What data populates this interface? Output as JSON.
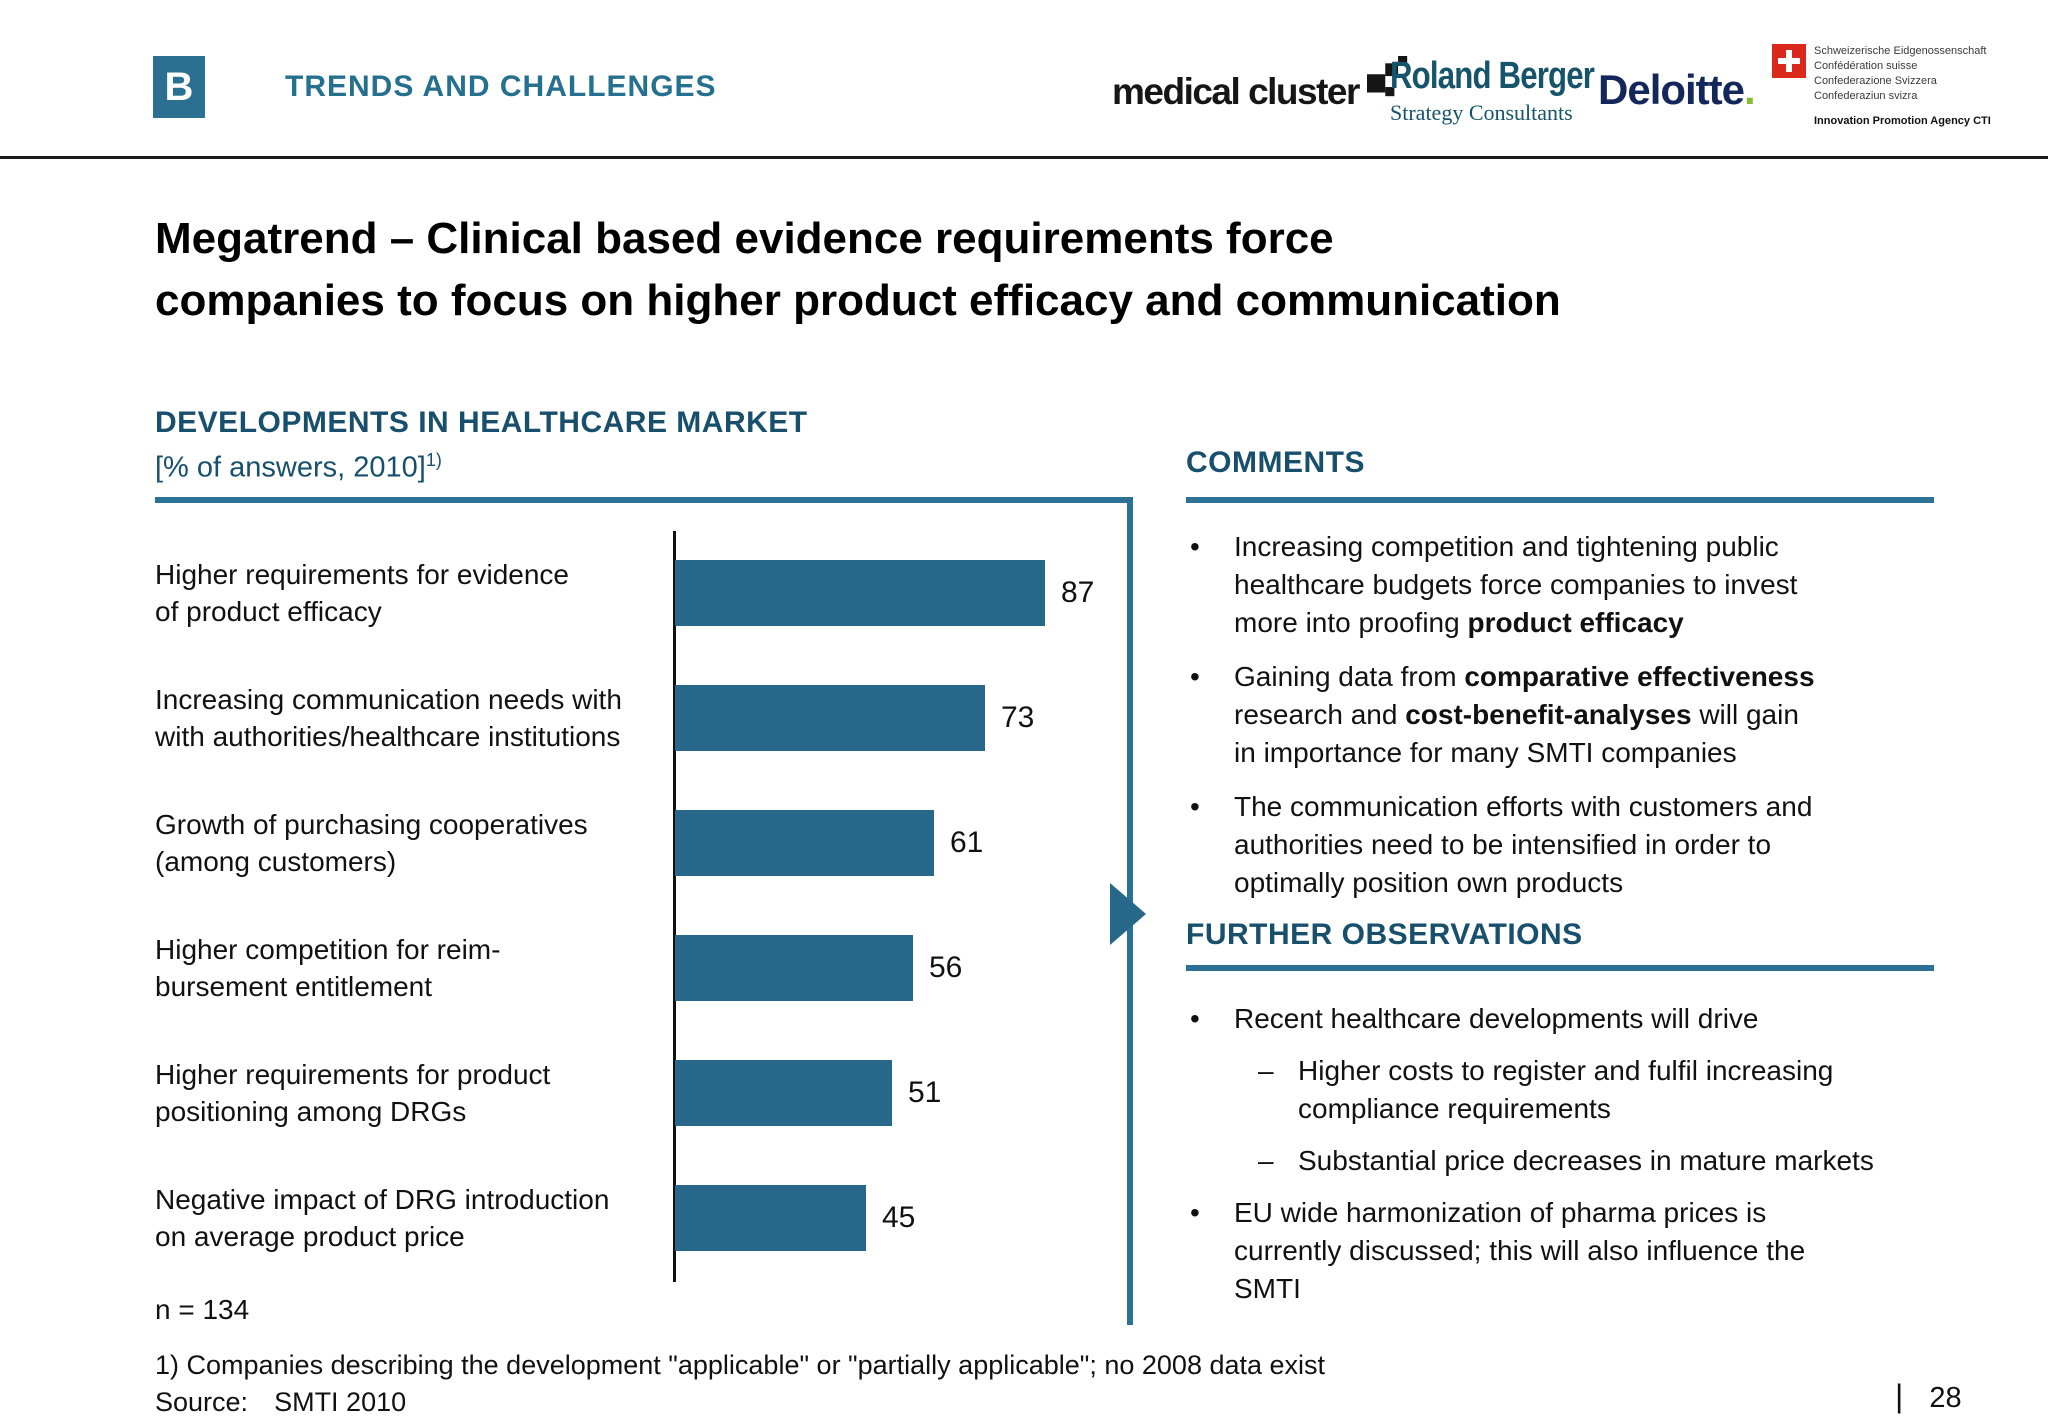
{
  "header": {
    "badge": "B",
    "section_title": "TRENDS AND CHALLENGES",
    "logos": {
      "medical_cluster": "medical cluster",
      "roland_berger": {
        "name": "Roland Berger",
        "subtitle": "Strategy Consultants"
      },
      "deloitte": {
        "name": "Deloitte",
        "dot": "."
      },
      "swiss": {
        "lines": [
          "Schweizerische Eidgenossenschaft",
          "Confédération suisse",
          "Confederazione Svizzera",
          "Confederaziun svizra"
        ],
        "agency": "Innovation Promotion Agency CTI"
      }
    }
  },
  "title": "Megatrend – Clinical based evidence requirements force\ncompanies to focus on higher product efficacy and communication",
  "chart": {
    "heading": "DEVELOPMENTS IN HEALTHCARE MARKET",
    "subheading": "[% of answers, 2010]",
    "footnote_marker": "1)",
    "n_label": "n = 134"
  },
  "chart_data": {
    "type": "bar",
    "orientation": "horizontal",
    "title": "DEVELOPMENTS IN HEALTHCARE MARKET",
    "subtitle": "[% of answers, 2010]",
    "unit": "% of answers",
    "categories": [
      "Higher requirements for evidence\nof product efficacy",
      "Increasing communication needs with\nwith authorities/healthcare institutions",
      "Growth of purchasing cooperatives\n(among customers)",
      "Higher competition for reim-\nbursement entitlement",
      "Higher requirements for product\npositioning among DRGs",
      "Negative impact of DRG introduction\non average product price"
    ],
    "values": [
      87,
      73,
      61,
      56,
      51,
      45
    ],
    "n": 134,
    "xlim": [
      0,
      100
    ],
    "grid": false,
    "bar_color": "#26678a",
    "value_label_position": "right-of-bar"
  },
  "comments": {
    "heading": "COMMENTS",
    "bullets": [
      {
        "segments": [
          {
            "t": "Increasing competition and tightening public\nhealthcare budgets force companies to invest\nmore into proofing "
          },
          {
            "t": "product efficacy",
            "b": true
          }
        ]
      },
      {
        "segments": [
          {
            "t": "Gaining data from "
          },
          {
            "t": "comparative effectiveness",
            "b": true
          },
          {
            "t": "\nresearch and "
          },
          {
            "t": "cost-benefit-analyses",
            "b": true
          },
          {
            "t": " will gain\nin importance for many SMTI companies"
          }
        ]
      },
      {
        "segments": [
          {
            "t": "The communication efforts with customers and\nauthorities need to be intensified in order to\noptimally position own products"
          }
        ]
      }
    ]
  },
  "observations": {
    "heading": "FURTHER OBSERVATIONS",
    "items": [
      {
        "level": 0,
        "segments": [
          {
            "t": "Recent healthcare developments will drive"
          }
        ]
      },
      {
        "level": 1,
        "segments": [
          {
            "t": "Higher costs to register and fulfil increasing\ncompliance requirements"
          }
        ]
      },
      {
        "level": 1,
        "segments": [
          {
            "t": "Substantial price decreases in mature markets"
          }
        ]
      },
      {
        "level": 0,
        "segments": [
          {
            "t": "EU wide harmonization of pharma prices is\ncurrently discussed; this will also influence the\nSMTI"
          }
        ]
      }
    ]
  },
  "footer": {
    "footnote": "1) Companies describing the development \"applicable\" or \"partially applicable\"; no 2008 data exist",
    "source_label": "Source:",
    "source_value": "SMTI 2010",
    "page_separator": "|",
    "page_number": "28"
  },
  "colors": {
    "accent_teal": "#26678a",
    "rule_teal": "#2b7295",
    "heading_teal": "#174f6c",
    "deloitte_blue": "#14275b",
    "deloitte_green": "#84bd32",
    "roland_berger_petrol": "#15546a",
    "swiss_red": "#da291c",
    "text_black": "#111111"
  }
}
